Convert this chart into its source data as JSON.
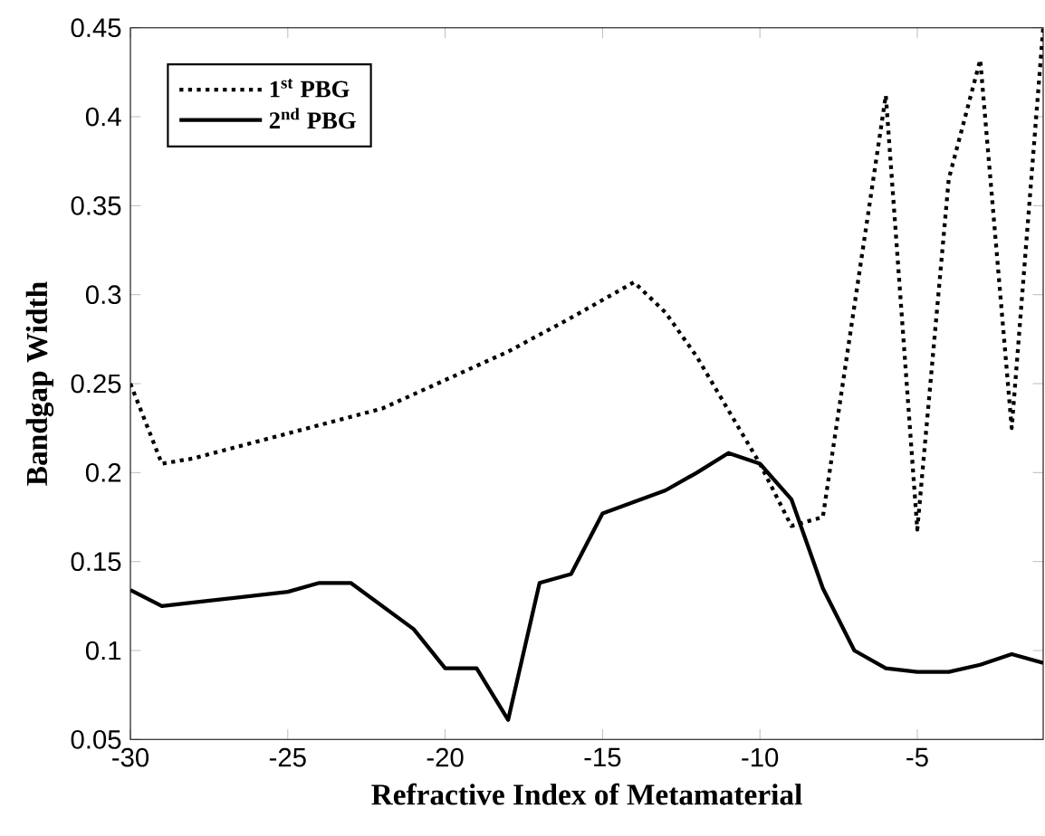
{
  "chart_data": {
    "type": "line",
    "xlabel": "Refractive Index of Metamaterial",
    "ylabel": "Bandgap Width",
    "xlim": [
      -30,
      -1
    ],
    "ylim": [
      0.05,
      0.45
    ],
    "xticks": [
      -30,
      -25,
      -20,
      -15,
      -10,
      -5
    ],
    "yticks": [
      0.05,
      0.1,
      0.15,
      0.2,
      0.25,
      0.3,
      0.35,
      0.4,
      0.45
    ],
    "legend": "top left",
    "grid": false,
    "marker": "none",
    "series": [
      {
        "name": "1$^{st}$ PBG",
        "color": "#000000",
        "line_style": "dotted",
        "x": [
          -30,
          -29,
          -28,
          -25,
          -22,
          -20,
          -18,
          -16,
          -14,
          -13,
          -12,
          -11,
          -10,
          -9,
          -8,
          -6,
          -5,
          -4,
          -3,
          -2,
          -1
        ],
        "values": [
          0.25,
          0.205,
          0.208,
          0.222,
          0.236,
          0.252,
          0.268,
          0.287,
          0.307,
          0.29,
          0.265,
          0.235,
          0.205,
          0.17,
          0.175,
          0.412,
          0.168,
          0.365,
          0.432,
          0.225,
          0.45
        ]
      },
      {
        "name": "2$^{nd}$ PBG",
        "color": "#000000",
        "line_style": "solid",
        "x": [
          -30,
          -29,
          -28,
          -25,
          -24,
          -23,
          -21,
          -20,
          -19.5,
          -19,
          -18,
          -17,
          -16,
          -15,
          -13,
          -12,
          -11,
          -10,
          -9,
          -8,
          -7,
          -6,
          -5,
          -4,
          -3,
          -2,
          -1
        ],
        "values": [
          0.134,
          0.125,
          0.127,
          0.133,
          0.138,
          0.138,
          0.112,
          0.09,
          0.09,
          0.09,
          0.061,
          0.138,
          0.143,
          0.177,
          0.19,
          0.2,
          0.211,
          0.205,
          0.185,
          0.135,
          0.1,
          0.09,
          0.088,
          0.088,
          0.092,
          0.098,
          0.093
        ]
      }
    ]
  }
}
